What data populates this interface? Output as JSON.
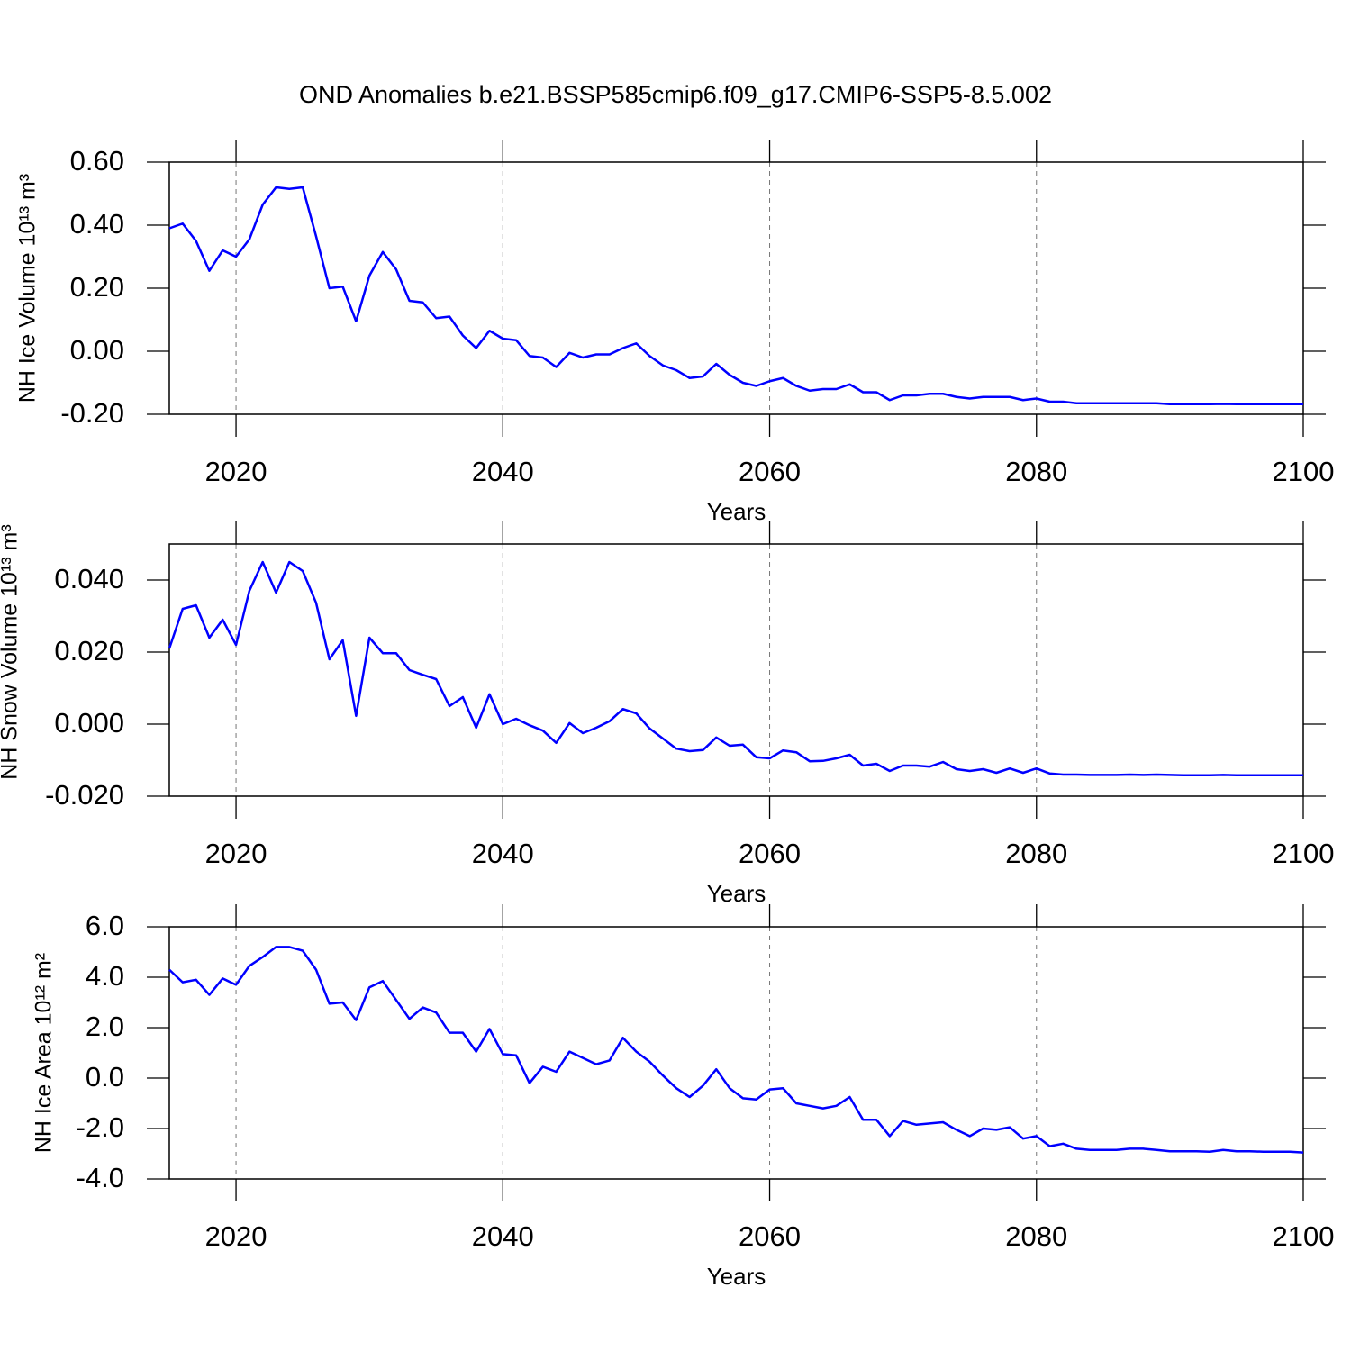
{
  "chart_data": [
    {
      "type": "line",
      "title": "OND Anomalies b.e21.BSSP585cmip6.f09_g17.CMIP6-SSP5-8.5.002",
      "y_label": "NH Ice Volume 10¹³ m³",
      "x_label": "Years",
      "color": "#0000ff",
      "grid": true,
      "x": [
        2015,
        2016,
        2017,
        2018,
        2019,
        2020,
        2021,
        2022,
        2023,
        2024,
        2025,
        2026,
        2027,
        2028,
        2029,
        2030,
        2031,
        2032,
        2033,
        2034,
        2035,
        2036,
        2037,
        2038,
        2039,
        2040,
        2041,
        2042,
        2043,
        2044,
        2045,
        2046,
        2047,
        2048,
        2049,
        2050,
        2051,
        2052,
        2053,
        2054,
        2055,
        2056,
        2057,
        2058,
        2059,
        2060,
        2061,
        2062,
        2063,
        2064,
        2065,
        2066,
        2067,
        2068,
        2069,
        2070,
        2071,
        2072,
        2073,
        2074,
        2075,
        2076,
        2077,
        2078,
        2079,
        2080,
        2081,
        2082,
        2083,
        2084,
        2085,
        2086,
        2087,
        2088,
        2089,
        2090,
        2091,
        2092,
        2093,
        2094,
        2095,
        2096,
        2097,
        2098,
        2099,
        2100
      ],
      "values": [
        0.39,
        0.405,
        0.35,
        0.255,
        0.32,
        0.3,
        0.355,
        0.465,
        0.52,
        0.515,
        0.52,
        0.365,
        0.2,
        0.205,
        0.095,
        0.24,
        0.315,
        0.26,
        0.16,
        0.155,
        0.105,
        0.11,
        0.05,
        0.01,
        0.065,
        0.04,
        0.035,
        -0.015,
        -0.02,
        -0.05,
        -0.005,
        -0.02,
        -0.01,
        -0.01,
        0.01,
        0.025,
        -0.015,
        -0.045,
        -0.06,
        -0.085,
        -0.08,
        -0.04,
        -0.075,
        -0.1,
        -0.11,
        -0.095,
        -0.085,
        -0.11,
        -0.125,
        -0.12,
        -0.12,
        -0.105,
        -0.13,
        -0.13,
        -0.155,
        -0.14,
        -0.14,
        -0.135,
        -0.135,
        -0.145,
        -0.15,
        -0.145,
        -0.145,
        -0.145,
        -0.155,
        -0.15,
        -0.16,
        -0.16,
        -0.165,
        -0.165,
        -0.165,
        -0.165,
        -0.165,
        -0.165,
        -0.165,
        -0.168,
        -0.168,
        -0.168,
        -0.168,
        -0.167,
        -0.168,
        -0.168,
        -0.168,
        -0.168,
        -0.168,
        -0.168
      ],
      "xlim": [
        2015,
        2100
      ],
      "xticks": [
        2020,
        2040,
        2060,
        2080,
        2100
      ],
      "ylim": [
        -0.2,
        0.6
      ],
      "yticks": [
        {
          "value": -0.2,
          "label": "-0.20"
        },
        {
          "value": 0,
          "label": "0.00"
        },
        {
          "value": 0.2,
          "label": "0.20"
        },
        {
          "value": 0.4,
          "label": "0.40"
        },
        {
          "value": 0.6,
          "label": "0.60"
        }
      ]
    },
    {
      "type": "line",
      "y_label": "NH Snow Volume 10¹³ m³",
      "x_label": "Years",
      "color": "#0000ff",
      "grid": true,
      "x": [
        2015,
        2016,
        2017,
        2018,
        2019,
        2020,
        2021,
        2022,
        2023,
        2024,
        2025,
        2026,
        2027,
        2028,
        2029,
        2030,
        2031,
        2032,
        2033,
        2034,
        2035,
        2036,
        2037,
        2038,
        2039,
        2040,
        2041,
        2042,
        2043,
        2044,
        2045,
        2046,
        2047,
        2048,
        2049,
        2050,
        2051,
        2052,
        2053,
        2054,
        2055,
        2056,
        2057,
        2058,
        2059,
        2060,
        2061,
        2062,
        2063,
        2064,
        2065,
        2066,
        2067,
        2068,
        2069,
        2070,
        2071,
        2072,
        2073,
        2074,
        2075,
        2076,
        2077,
        2078,
        2079,
        2080,
        2081,
        2082,
        2083,
        2084,
        2085,
        2086,
        2087,
        2088,
        2089,
        2090,
        2091,
        2092,
        2093,
        2094,
        2095,
        2096,
        2097,
        2098,
        2099,
        2100
      ],
      "values": [
        0.021,
        0.032,
        0.033,
        0.024,
        0.029,
        0.022,
        0.037,
        0.045,
        0.0365,
        0.045,
        0.0425,
        0.0337,
        0.018,
        0.0233,
        0.0023,
        0.024,
        0.0197,
        0.0197,
        0.015,
        0.0137,
        0.0125,
        0.005,
        0.0075,
        -0.001,
        0.0083,
        0,
        0.0015,
        -0.0003,
        -0.0018,
        -0.0052,
        0.0003,
        -0.0025,
        -0.001,
        0.0008,
        0.0042,
        0.003,
        -0.0012,
        -0.004,
        -0.0068,
        -0.0075,
        -0.0072,
        -0.0037,
        -0.006,
        -0.0057,
        -0.0092,
        -0.0095,
        -0.0073,
        -0.0078,
        -0.0103,
        -0.0102,
        -0.0095,
        -0.0085,
        -0.0115,
        -0.011,
        -0.013,
        -0.0115,
        -0.0115,
        -0.0118,
        -0.0105,
        -0.0125,
        -0.013,
        -0.0125,
        -0.0135,
        -0.0123,
        -0.0135,
        -0.0123,
        -0.0137,
        -0.014,
        -0.014,
        -0.0141,
        -0.0141,
        -0.0141,
        -0.014,
        -0.0141,
        -0.014,
        -0.0141,
        -0.0142,
        -0.0142,
        -0.0142,
        -0.0141,
        -0.0142,
        -0.0142,
        -0.0142,
        -0.0142,
        -0.0142,
        -0.0142
      ],
      "xlim": [
        2015,
        2100
      ],
      "xticks": [
        2020,
        2040,
        2060,
        2080,
        2100
      ],
      "ylim": [
        -0.02,
        0.05
      ],
      "yticks": [
        {
          "value": -0.02,
          "label": "-0.020"
        },
        {
          "value": 0,
          "label": "0.000"
        },
        {
          "value": 0.02,
          "label": "0.020"
        },
        {
          "value": 0.04,
          "label": "0.040"
        }
      ]
    },
    {
      "type": "line",
      "y_label": "NH Ice Area 10¹² m²",
      "x_label": "Years",
      "color": "#0000ff",
      "grid": true,
      "x": [
        2015,
        2016,
        2017,
        2018,
        2019,
        2020,
        2021,
        2022,
        2023,
        2024,
        2025,
        2026,
        2027,
        2028,
        2029,
        2030,
        2031,
        2032,
        2033,
        2034,
        2035,
        2036,
        2037,
        2038,
        2039,
        2040,
        2041,
        2042,
        2043,
        2044,
        2045,
        2046,
        2047,
        2048,
        2049,
        2050,
        2051,
        2052,
        2053,
        2054,
        2055,
        2056,
        2057,
        2058,
        2059,
        2060,
        2061,
        2062,
        2063,
        2064,
        2065,
        2066,
        2067,
        2068,
        2069,
        2070,
        2071,
        2072,
        2073,
        2074,
        2075,
        2076,
        2077,
        2078,
        2079,
        2080,
        2081,
        2082,
        2083,
        2084,
        2085,
        2086,
        2087,
        2088,
        2089,
        2090,
        2091,
        2092,
        2093,
        2094,
        2095,
        2096,
        2097,
        2098,
        2099,
        2100
      ],
      "values": [
        4.3,
        3.8,
        3.9,
        3.3,
        3.95,
        3.7,
        4.45,
        4.8,
        5.2,
        5.2,
        5.05,
        4.3,
        2.95,
        3.0,
        2.3,
        3.6,
        3.85,
        3.1,
        2.35,
        2.8,
        2.6,
        1.8,
        1.8,
        1.05,
        1.95,
        0.95,
        0.9,
        -0.2,
        0.45,
        0.25,
        1.05,
        0.8,
        0.55,
        0.7,
        1.6,
        1.05,
        0.65,
        0.1,
        -0.4,
        -0.75,
        -0.3,
        0.35,
        -0.4,
        -0.8,
        -0.85,
        -0.45,
        -0.4,
        -1.0,
        -1.1,
        -1.2,
        -1.1,
        -0.75,
        -1.65,
        -1.65,
        -2.3,
        -1.7,
        -1.85,
        -1.8,
        -1.75,
        -2.05,
        -2.3,
        -2.0,
        -2.05,
        -1.95,
        -2.4,
        -2.3,
        -2.7,
        -2.6,
        -2.8,
        -2.85,
        -2.85,
        -2.85,
        -2.8,
        -2.8,
        -2.85,
        -2.9,
        -2.9,
        -2.9,
        -2.92,
        -2.85,
        -2.9,
        -2.9,
        -2.92,
        -2.92,
        -2.92,
        -2.95
      ],
      "xlim": [
        2015,
        2100
      ],
      "xticks": [
        2020,
        2040,
        2060,
        2080,
        2100
      ],
      "ylim": [
        -4,
        6
      ],
      "yticks": [
        {
          "value": -4,
          "label": "-4.0"
        },
        {
          "value": -2,
          "label": "-2.0"
        },
        {
          "value": 0,
          "label": "0.0"
        },
        {
          "value": 2,
          "label": "2.0"
        },
        {
          "value": 4,
          "label": "4.0"
        },
        {
          "value": 6,
          "label": "6.0"
        }
      ]
    }
  ]
}
